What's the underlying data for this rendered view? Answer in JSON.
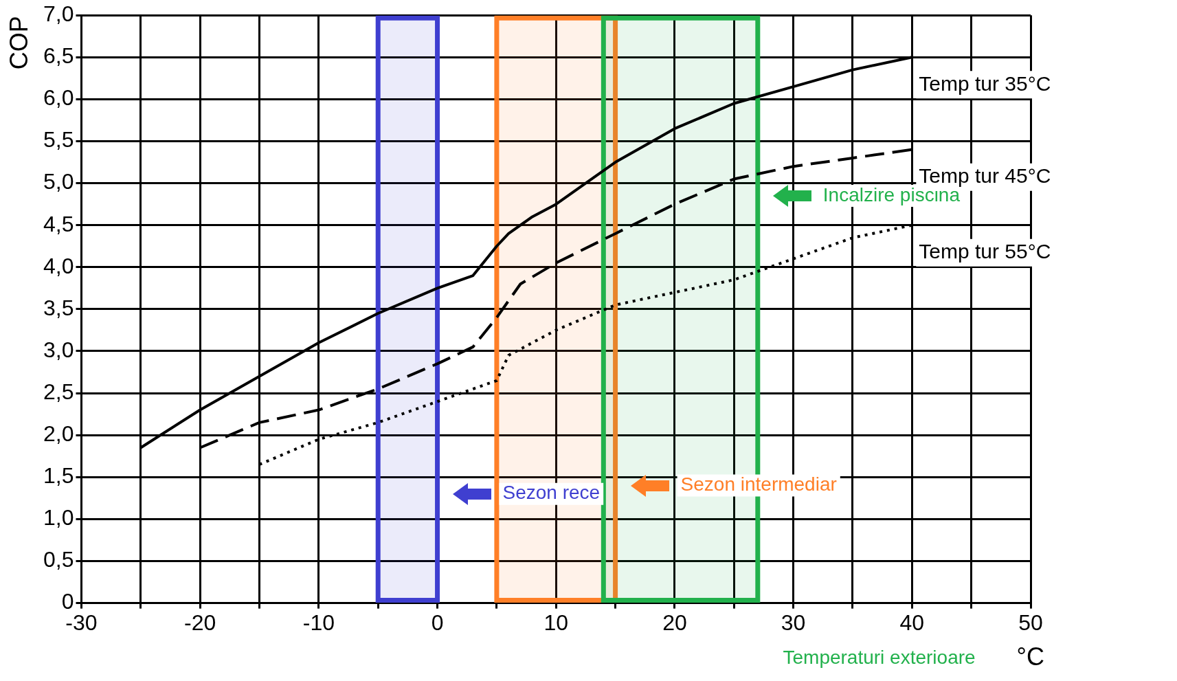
{
  "chart_data": {
    "type": "line",
    "ylabel": "COP",
    "xlabel": "°C",
    "annotations": [
      "Temperaturi exterioare"
    ],
    "xlim": [
      -30,
      50
    ],
    "xticks": [
      -30,
      {
        "value": -25,
        "label": null
      },
      -20,
      {
        "value": -15,
        "label": null
      },
      -10,
      {
        "value": -5,
        "label": null
      },
      0,
      {
        "value": 5,
        "label": null
      },
      10,
      {
        "value": 15,
        "label": null
      },
      20,
      {
        "value": 25,
        "label": null
      },
      30,
      {
        "value": 35,
        "label": null
      },
      40,
      {
        "value": 45,
        "label": null
      },
      50
    ],
    "ylim": [
      0,
      7
    ],
    "yticks": [
      0,
      {
        "value": 0.5,
        "label": "0,5"
      },
      {
        "value": 1,
        "label": "1,0"
      },
      {
        "value": 1.5,
        "label": "1,5"
      },
      {
        "value": 2,
        "label": "2,0"
      },
      {
        "value": 2.5,
        "label": "2,5"
      },
      {
        "value": 3,
        "label": "3,0"
      },
      {
        "value": 3.5,
        "label": "3,5"
      },
      {
        "value": 4,
        "label": "4,0"
      },
      {
        "value": 4.5,
        "label": "4,5"
      },
      {
        "value": 5,
        "label": "5,0"
      },
      {
        "value": 5.5,
        "label": "5,5"
      },
      {
        "value": 6,
        "label": "6,0"
      },
      {
        "value": 6.5,
        "label": "6,5"
      },
      {
        "value": 7,
        "label": "7,0"
      }
    ],
    "grid": true,
    "legend": false,
    "marker": "none",
    "series": [
      {
        "name": "Temp tur 35°C",
        "color": "#000000",
        "line_style": "solid",
        "x": [
          -25,
          -20,
          -10,
          -5,
          0,
          3,
          5,
          6,
          8,
          10,
          15,
          20,
          25,
          30,
          35,
          40
        ],
        "values": [
          1.85,
          2.3,
          3.1,
          3.45,
          3.75,
          3.9,
          4.25,
          4.4,
          4.6,
          4.75,
          5.25,
          5.65,
          5.95,
          6.15,
          6.35,
          6.5
        ]
      },
      {
        "name": "Temp tur 45°C",
        "color": "#000000",
        "line_style": "dashed",
        "x": [
          -20,
          -15,
          -10,
          -5,
          0,
          3,
          5,
          7,
          10,
          15,
          20,
          25,
          30,
          35,
          40
        ],
        "values": [
          1.85,
          2.15,
          2.3,
          2.55,
          2.85,
          3.05,
          3.4,
          3.8,
          4.05,
          4.4,
          4.75,
          5.05,
          5.2,
          5.3,
          5.4
        ]
      },
      {
        "name": "Temp tur 55°C",
        "color": "#000000",
        "line_style": "dotted",
        "x": [
          -15,
          -10,
          -5,
          0,
          5,
          6,
          10,
          15,
          20,
          25,
          30,
          35,
          40
        ],
        "values": [
          1.65,
          1.95,
          2.15,
          2.4,
          2.65,
          2.95,
          3.25,
          3.55,
          3.7,
          3.85,
          4.1,
          4.35,
          4.5
        ]
      }
    ],
    "bands": [
      {
        "axis": "x",
        "from": -5,
        "to": 0,
        "label": "Sezon rece",
        "color": "#3f3fd0"
      },
      {
        "axis": "x",
        "from": 5,
        "to": 15,
        "label": "Sezon intermediar",
        "color": "#ff7f27"
      },
      {
        "axis": "x",
        "from": 14,
        "to": 27,
        "label": "Incalzire piscina",
        "color": "#22b14c"
      }
    ]
  }
}
